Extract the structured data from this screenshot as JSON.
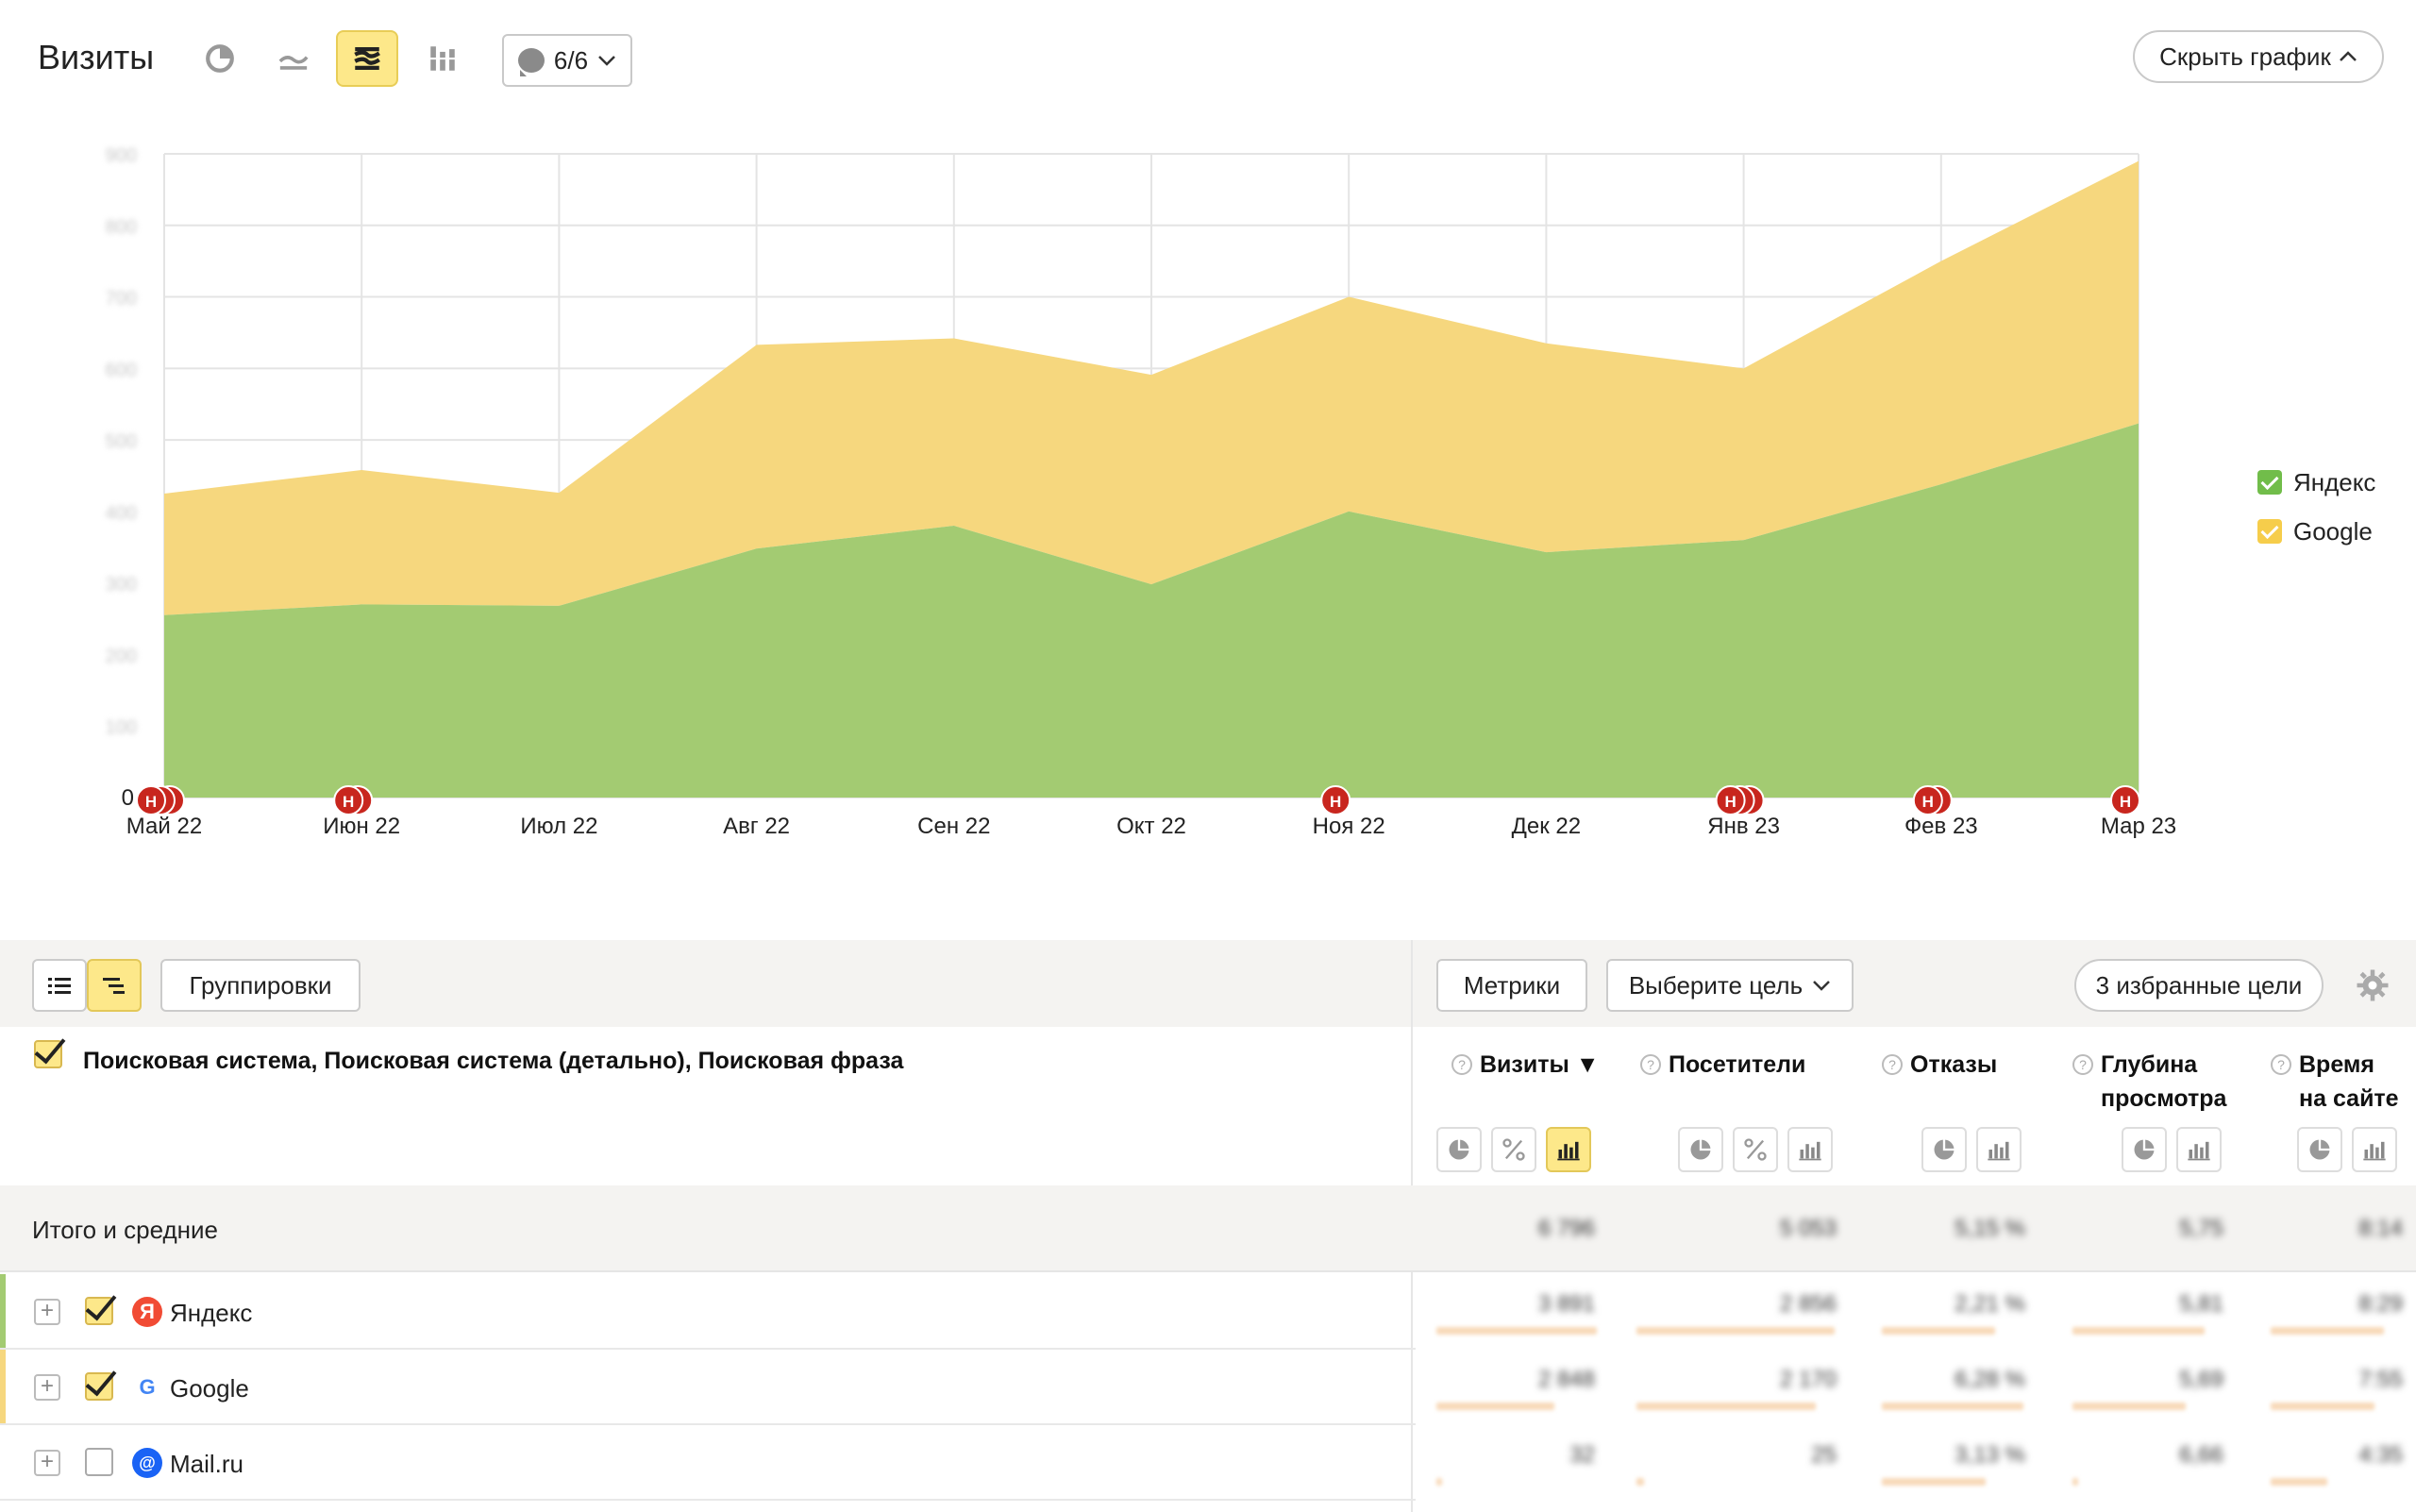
{
  "header": {
    "title": "Визиты",
    "notes_count": "6/6",
    "hide_chart_label": "Скрыть график"
  },
  "chart_data": {
    "type": "area",
    "stacked": true,
    "categories": [
      "Май 22",
      "Июн 22",
      "Июл 22",
      "Авг 22",
      "Сен 22",
      "Окт 22",
      "Ноя 22",
      "Дек 22",
      "Янв 23",
      "Фев 23",
      "Мар 23"
    ],
    "series": [
      {
        "name": "Яндекс",
        "color": "#a3cb72",
        "values": [
          255,
          270,
          268,
          348,
          380,
          298,
          400,
          343,
          360,
          438,
          523
        ]
      },
      {
        "name": "Google",
        "color": "#f6d77e",
        "values": [
          170,
          188,
          158,
          285,
          262,
          293,
          300,
          292,
          240,
          312,
          367
        ]
      }
    ],
    "yticks": [
      "0",
      "100",
      "200",
      "300",
      "400",
      "500",
      "600",
      "700",
      "800",
      "900"
    ],
    "ylim": [
      0,
      900
    ],
    "grid": true,
    "legend_position": "right",
    "annotation_marker": "Н",
    "annotation_indices": [
      0,
      1,
      6,
      8,
      9,
      10
    ]
  },
  "legend": [
    {
      "label": "Яндекс",
      "color": "#71bd4a"
    },
    {
      "label": "Google",
      "color": "#f6cd4b"
    }
  ],
  "toolbar": {
    "groupings_label": "Группировки",
    "metrics_label": "Метрики",
    "goal_select_label": "Выберите цель",
    "favorites_label": "3 избранные цели"
  },
  "table": {
    "dimensions_label": "Поисковая система, Поисковая система (детально), Поисковая фраза",
    "columns": [
      {
        "line1": "Визиты ▼",
        "line2": ""
      },
      {
        "line1": "Посетители",
        "line2": ""
      },
      {
        "line1": "Отказы",
        "line2": ""
      },
      {
        "line1": "Глубина",
        "line2": "просмотра"
      },
      {
        "line1": "Время",
        "line2": "на сайте"
      }
    ],
    "totals_label": "Итого и средние",
    "totals": [
      "6 796",
      "5 053",
      "5,15 %",
      "5,75",
      "8:14"
    ],
    "rows": [
      {
        "name": "Яндекс",
        "checked": true,
        "stripe": "#a3cb72",
        "logo_letter": "Я",
        "values": [
          "3 891",
          "2 856",
          "2,21 %",
          "5,81",
          "8:29"
        ]
      },
      {
        "name": "Google",
        "checked": true,
        "stripe": "#f6d77e",
        "logo_letter": "G",
        "values": [
          "2 848",
          "2 170",
          "6,28 %",
          "5,69",
          "7:55"
        ]
      },
      {
        "name": "Mail.ru",
        "checked": false,
        "stripe": "",
        "logo_letter": "@",
        "values": [
          "32",
          "25",
          "3,13 %",
          "6,66",
          "4:35"
        ]
      }
    ]
  }
}
